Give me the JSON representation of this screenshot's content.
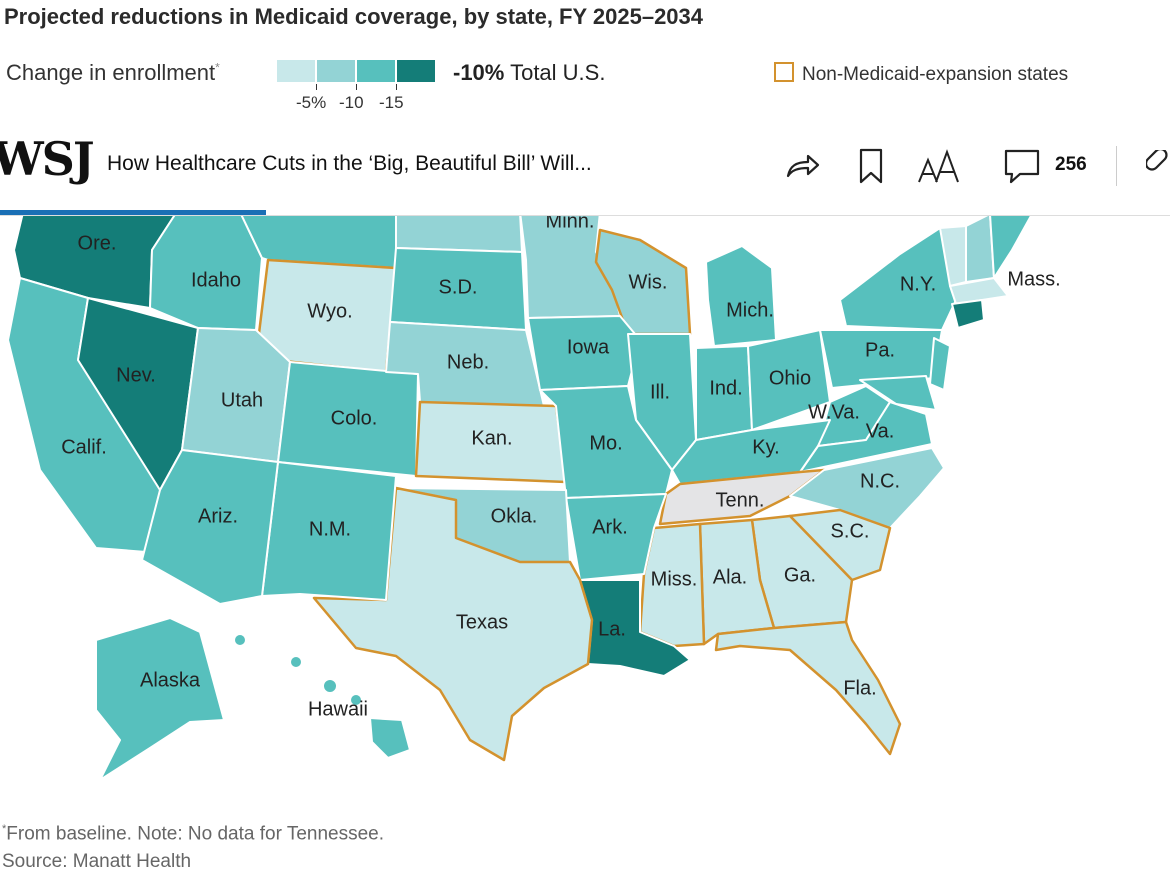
{
  "chart": {
    "title": "Projected reductions in Medicaid coverage, by state, FY 2025–2034",
    "legend_label": "Change in enrollment",
    "legend_asterisk": "*",
    "legend_ticks": [
      "-5%",
      "-10",
      "-15"
    ],
    "legend_colors": [
      "#c8e8ea",
      "#93d3d5",
      "#57c0bd",
      "#147d78"
    ],
    "total_value": "-10%",
    "total_label": "Total U.S.",
    "nonexpansion_label": "Non-Medicaid-expansion states",
    "nonexpansion_color": "#d3922e",
    "nodata_color": "#e4e4e6",
    "footnote_asterisk": "*",
    "footnote": "From baseline. Note: No data for Tennessee.",
    "source": "Source:  Manatt Health"
  },
  "toolbar": {
    "logo": "WSJ",
    "headline": "How Healthcare Cuts in the ‘Big, Beautiful Bill’ Will...",
    "comment_count": "256",
    "icons": [
      "share-icon",
      "bookmark-icon",
      "text-size-icon",
      "comment-icon",
      "link-icon"
    ],
    "progress_fraction": 0.23,
    "accent": "#1a6fb5"
  },
  "chart_data": {
    "type": "choropleth",
    "title": "Projected reductions in Medicaid coverage, by state, FY 2025–2034",
    "bins": [
      "-5%",
      "-10",
      "-15"
    ],
    "states": [
      {
        "label": "Ore.",
        "bin": 4
      },
      {
        "label": "Idaho",
        "bin": 3
      },
      {
        "label": "Wyo.",
        "bin": 1,
        "non_expansion": true
      },
      {
        "label": "S.D.",
        "bin": 3
      },
      {
        "label": "Minn.",
        "bin": 2
      },
      {
        "label": "Wis.",
        "bin": 2,
        "non_expansion": true
      },
      {
        "label": "Mich.",
        "bin": 3
      },
      {
        "label": "N.Y.",
        "bin": 3
      },
      {
        "label": "Mass.",
        "bin": 2
      },
      {
        "label": "Nev.",
        "bin": 4
      },
      {
        "label": "Utah",
        "bin": 2
      },
      {
        "label": "Neb.",
        "bin": 2
      },
      {
        "label": "Iowa",
        "bin": 3
      },
      {
        "label": "Ill.",
        "bin": 3
      },
      {
        "label": "Ind.",
        "bin": 3
      },
      {
        "label": "Ohio",
        "bin": 3
      },
      {
        "label": "Pa.",
        "bin": 3
      },
      {
        "label": "Calif.",
        "bin": 3
      },
      {
        "label": "Colo.",
        "bin": 3
      },
      {
        "label": "Kan.",
        "bin": 1,
        "non_expansion": true
      },
      {
        "label": "Mo.",
        "bin": 3
      },
      {
        "label": "Ky.",
        "bin": 3
      },
      {
        "label": "W.Va.",
        "bin": 3
      },
      {
        "label": "Va.",
        "bin": 3
      },
      {
        "label": "N.C.",
        "bin": 2
      },
      {
        "label": "Tenn.",
        "bin": 0,
        "non_expansion": true
      },
      {
        "label": "Ariz.",
        "bin": 3
      },
      {
        "label": "N.M.",
        "bin": 3
      },
      {
        "label": "Okla.",
        "bin": 2
      },
      {
        "label": "Ark.",
        "bin": 3
      },
      {
        "label": "S.C.",
        "bin": 1,
        "non_expansion": true
      },
      {
        "label": "Miss.",
        "bin": 1,
        "non_expansion": true
      },
      {
        "label": "Ala.",
        "bin": 1,
        "non_expansion": true
      },
      {
        "label": "Ga.",
        "bin": 1,
        "non_expansion": true
      },
      {
        "label": "Texas",
        "bin": 1,
        "non_expansion": true
      },
      {
        "label": "La.",
        "bin": 4
      },
      {
        "label": "Fla.",
        "bin": 1,
        "non_expansion": true
      },
      {
        "label": "Alaska",
        "bin": 3
      },
      {
        "label": "Hawaii",
        "bin": 3
      }
    ]
  }
}
